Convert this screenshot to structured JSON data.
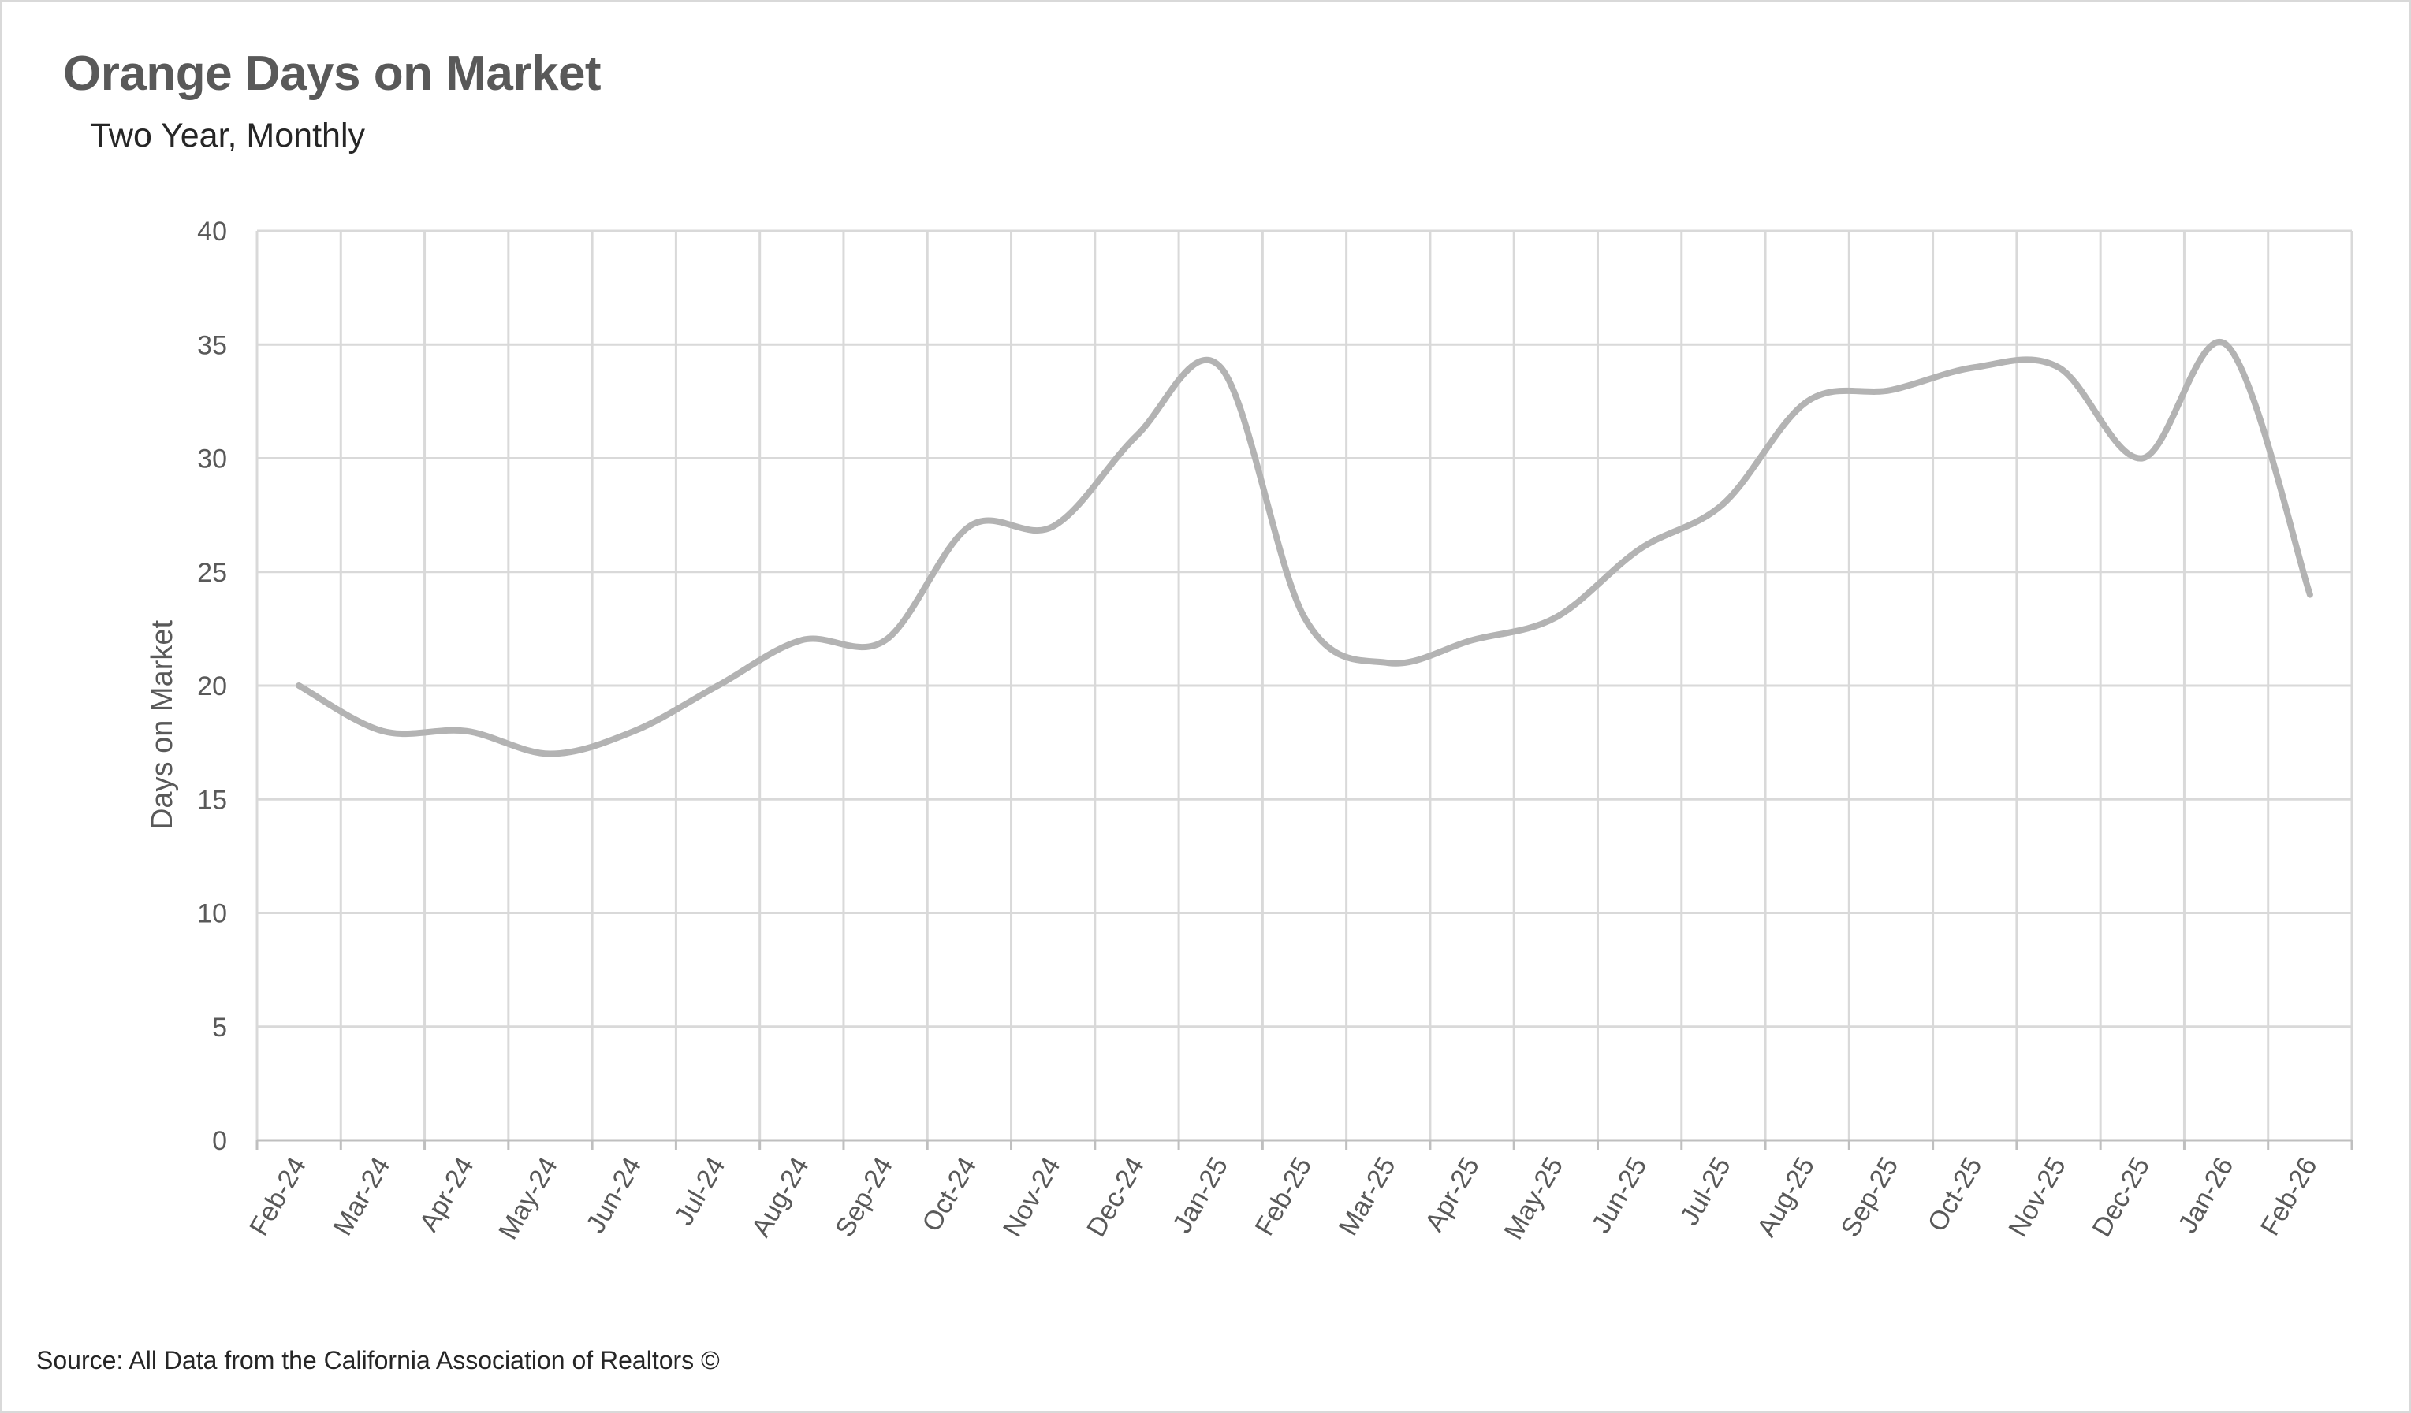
{
  "header": {
    "title": "Orange Days on Market",
    "subtitle": "Two Year, Monthly"
  },
  "footer": {
    "source": "Source: All Data from the California Association of Realtors ©"
  },
  "colors": {
    "line": "#b3b3b3",
    "grid": "#d9d9d9",
    "text": "#595959"
  },
  "chart_data": {
    "type": "line",
    "title": "Orange Days on Market",
    "subtitle": "Two Year, Monthly",
    "xlabel": "",
    "ylabel": "Days on Market",
    "ylim": [
      0,
      40
    ],
    "yticks": [
      0,
      5,
      10,
      15,
      20,
      25,
      30,
      35,
      40
    ],
    "grid": true,
    "smooth": true,
    "categories": [
      "Feb-24",
      "Mar-24",
      "Apr-24",
      "May-24",
      "Jun-24",
      "Jul-24",
      "Aug-24",
      "Sep-24",
      "Oct-24",
      "Nov-24",
      "Dec-24",
      "Jan-25",
      "Feb-25",
      "Mar-25",
      "Apr-25",
      "May-25",
      "Jun-25",
      "Jul-25",
      "Aug-25",
      "Sep-25",
      "Oct-25",
      "Nov-25",
      "Dec-25",
      "Jan-26",
      "Feb-26"
    ],
    "series": [
      {
        "values": [
          20,
          18,
          18,
          17,
          18,
          20,
          22,
          22,
          27,
          27,
          31,
          34,
          23,
          21,
          22,
          23,
          26,
          28,
          32.5,
          33,
          34,
          34,
          30,
          35,
          24
        ]
      }
    ]
  }
}
